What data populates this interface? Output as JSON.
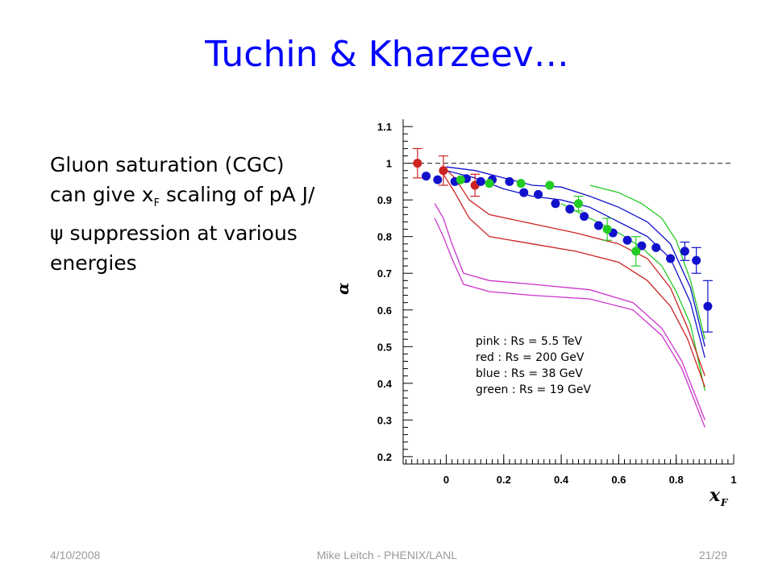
{
  "slide": {
    "title": "Tuchin & Kharzeev…",
    "bullet": {
      "part1": "Gluon saturation (CGC) can give x",
      "sub": "F",
      "part2": " scaling of pA J/",
      "psi": "ψ",
      "part3": " suppression at various energies"
    },
    "footer": {
      "date": "4/10/2008",
      "author": "Mike Leitch - PHENIX/LANL",
      "page": "21/29"
    }
  },
  "colors": {
    "title": "#0000ff",
    "pink": "#cc33cc",
    "red": "#cc2222",
    "blue": "#1111cc",
    "green": "#22cc22"
  },
  "chart_data": {
    "type": "scatter",
    "xlabel": "x",
    "xlabel_sub": "F",
    "ylabel": "α",
    "xlim": [
      -0.15,
      1.0
    ],
    "ylim": [
      0.18,
      1.12
    ],
    "x_ticks": [
      "0",
      "0.2",
      "0.4",
      "0.6",
      "0.8",
      "1"
    ],
    "x_tick_values": [
      0,
      0.2,
      0.4,
      0.6,
      0.8,
      1
    ],
    "y_ticks": [
      "0.2",
      "0.3",
      "0.4",
      "0.5",
      "0.6",
      "0.7",
      "0.8",
      "0.9",
      "1",
      "1.1"
    ],
    "y_tick_values": [
      0.2,
      0.3,
      0.4,
      0.5,
      0.6,
      0.7,
      0.8,
      0.9,
      1.0,
      1.1
    ],
    "reference_line": 1.0,
    "legend_position": "lower-right",
    "legend": [
      {
        "label": "pink : Rs = 5.5 TeV",
        "color": "pink"
      },
      {
        "label": "red : Rs = 200 GeV",
        "color": "red"
      },
      {
        "label": "blue : Rs = 38 GeV",
        "color": "blue"
      },
      {
        "label": "green : Rs = 19 GeV",
        "color": "green"
      }
    ],
    "points": [
      {
        "series": "red",
        "color": "red",
        "x": [
          -0.1,
          -0.01,
          0.1
        ],
        "y": [
          1.0,
          0.98,
          0.94
        ],
        "err": [
          0.04,
          0.04,
          0.03
        ]
      },
      {
        "series": "blue",
        "color": "blue",
        "x": [
          -0.07,
          -0.03,
          0.03,
          0.07,
          0.12,
          0.16,
          0.22,
          0.27,
          0.32,
          0.38,
          0.43,
          0.48,
          0.53,
          0.58,
          0.63,
          0.68,
          0.73,
          0.78,
          0.83,
          0.87,
          0.91
        ],
        "y": [
          0.965,
          0.955,
          0.95,
          0.958,
          0.95,
          0.955,
          0.95,
          0.92,
          0.915,
          0.89,
          0.875,
          0.855,
          0.83,
          0.81,
          0.79,
          0.775,
          0.77,
          0.74,
          0.76,
          0.735,
          0.61
        ],
        "err": [
          0,
          0,
          0,
          0,
          0,
          0,
          0,
          0,
          0,
          0,
          0,
          0,
          0,
          0,
          0,
          0,
          0,
          0,
          0.025,
          0.035,
          0.07
        ]
      },
      {
        "series": "green",
        "color": "green",
        "x": [
          0.05,
          0.15,
          0.26,
          0.36,
          0.46,
          0.56,
          0.66
        ],
        "y": [
          0.955,
          0.945,
          0.945,
          0.94,
          0.89,
          0.82,
          0.76
        ],
        "err": [
          0,
          0,
          0,
          0,
          0.02,
          0.03,
          0.04
        ]
      }
    ],
    "curves": [
      {
        "series": "blue",
        "color": "blue",
        "x": [
          0.0,
          0.1,
          0.2,
          0.3,
          0.4,
          0.5,
          0.6,
          0.7,
          0.78,
          0.85,
          0.9
        ],
        "y": [
          0.99,
          0.98,
          0.96,
          0.94,
          0.935,
          0.91,
          0.88,
          0.84,
          0.78,
          0.66,
          0.5
        ]
      },
      {
        "series": "blue",
        "color": "blue",
        "x": [
          0.0,
          0.1,
          0.2,
          0.3,
          0.4,
          0.5,
          0.6,
          0.7,
          0.78,
          0.85,
          0.9
        ],
        "y": [
          0.98,
          0.96,
          0.93,
          0.91,
          0.9,
          0.88,
          0.84,
          0.8,
          0.74,
          0.62,
          0.47
        ]
      },
      {
        "series": "green",
        "color": "green",
        "x": [
          0.5,
          0.6,
          0.68,
          0.75,
          0.8,
          0.85,
          0.9
        ],
        "y": [
          0.94,
          0.92,
          0.89,
          0.85,
          0.79,
          0.68,
          0.52
        ]
      },
      {
        "series": "green",
        "color": "green",
        "x": [
          0.4,
          0.5,
          0.6,
          0.68,
          0.75,
          0.8,
          0.85,
          0.9
        ],
        "y": [
          0.89,
          0.85,
          0.81,
          0.77,
          0.72,
          0.65,
          0.56,
          0.38
        ]
      },
      {
        "series": "red",
        "color": "red",
        "x": [
          -0.01,
          0.03,
          0.08,
          0.15,
          0.3,
          0.45,
          0.6,
          0.7,
          0.78,
          0.84,
          0.9
        ],
        "y": [
          0.99,
          0.96,
          0.9,
          0.86,
          0.835,
          0.81,
          0.78,
          0.74,
          0.66,
          0.55,
          0.42
        ]
      },
      {
        "series": "red",
        "color": "red",
        "x": [
          -0.01,
          0.03,
          0.08,
          0.15,
          0.3,
          0.45,
          0.6,
          0.7,
          0.78,
          0.84,
          0.9
        ],
        "y": [
          0.97,
          0.92,
          0.85,
          0.8,
          0.78,
          0.76,
          0.73,
          0.68,
          0.61,
          0.52,
          0.39
        ]
      },
      {
        "series": "pink",
        "color": "pink",
        "x": [
          -0.04,
          -0.01,
          0.02,
          0.06,
          0.15,
          0.3,
          0.5,
          0.65,
          0.75,
          0.82,
          0.9
        ],
        "y": [
          0.89,
          0.85,
          0.78,
          0.7,
          0.68,
          0.67,
          0.655,
          0.62,
          0.55,
          0.46,
          0.3
        ]
      },
      {
        "series": "pink",
        "color": "pink",
        "x": [
          -0.04,
          -0.01,
          0.02,
          0.06,
          0.15,
          0.3,
          0.5,
          0.65,
          0.75,
          0.82,
          0.9
        ],
        "y": [
          0.85,
          0.8,
          0.74,
          0.67,
          0.65,
          0.64,
          0.63,
          0.6,
          0.53,
          0.44,
          0.28
        ]
      }
    ]
  }
}
